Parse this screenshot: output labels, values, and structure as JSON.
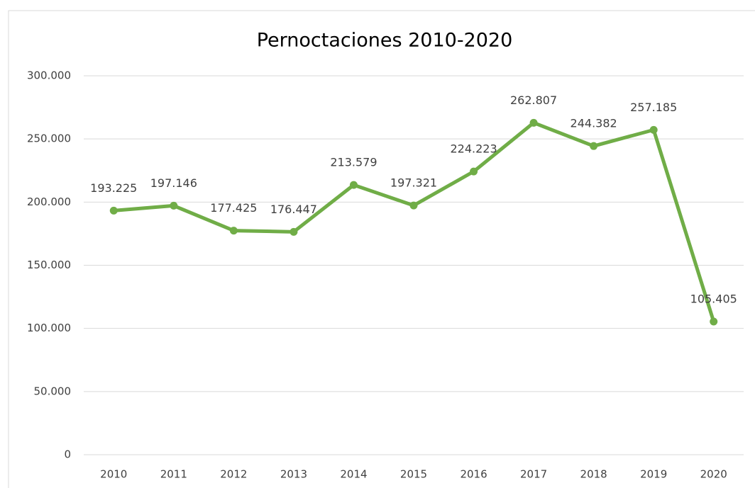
{
  "chart_data": {
    "type": "line",
    "title": "Pernoctaciones 2010-2020",
    "categories": [
      "2010",
      "2011",
      "2012",
      "2013",
      "2014",
      "2015",
      "2016",
      "2017",
      "2018",
      "2019",
      "2020"
    ],
    "series": [
      {
        "name": "Pernoctaciones",
        "color": "#70ad47",
        "values": [
          193225,
          197146,
          177425,
          176447,
          213579,
          197321,
          224223,
          262807,
          244382,
          257185,
          105405
        ],
        "value_labels": [
          "193.225",
          "197.146",
          "177.425",
          "176.447",
          "213.579",
          "197.321",
          "224.223",
          "262.807",
          "244.382",
          "257.185",
          "105.405"
        ]
      }
    ],
    "ylim": [
      0,
      300000
    ],
    "yticks": [
      0,
      {
        "value": 50000,
        "label": "50.000"
      },
      {
        "value": 100000,
        "label": "100.000"
      },
      {
        "value": 150000,
        "label": "150.000"
      },
      {
        "value": 200000,
        "label": "200.000"
      },
      {
        "value": 250000,
        "label": "250.000"
      },
      {
        "value": 300000,
        "label": "300.000"
      }
    ],
    "grid": true
  }
}
